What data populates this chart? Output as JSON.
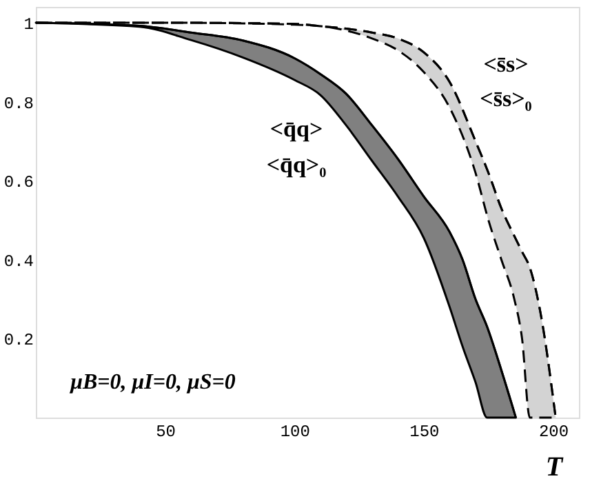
{
  "chart_data": {
    "type": "line",
    "xlabel": "T",
    "xlim": [
      0,
      210
    ],
    "ylim": [
      0,
      1.04
    ],
    "xticks": [
      50,
      100,
      150,
      200
    ],
    "yticks": [
      0.2,
      0.4,
      0.6,
      0.8,
      {
        "value": 1,
        "label": "1"
      }
    ],
    "grid": false,
    "series": [
      {
        "color": "#000000",
        "line_style": "solid",
        "x": [
          0,
          40,
          60,
          80,
          100,
          110,
          120,
          130,
          140,
          150,
          160,
          165,
          170,
          174.5,
          180,
          185.6
        ],
        "values": [
          1,
          0.992,
          0.975,
          0.955,
          0.91,
          0.87,
          0.82,
          0.74,
          0.655,
          0.56,
          0.47,
          0.4,
          0.3,
          0.23,
          0.12,
          0
        ],
        "upper": [
          1,
          0.992,
          0.975,
          0.955,
          0.91,
          0.87,
          0.82,
          0.74,
          0.655,
          0.56,
          0.47,
          0.4,
          0.3,
          0.23,
          0.12,
          0
        ],
        "lower": [
          1,
          0.99,
          0.956,
          0.912,
          0.855,
          0.817,
          0.74,
          0.65,
          0.56,
          0.455,
          0.28,
          0.18,
          0.09,
          0,
          0,
          0
        ]
      },
      {
        "color": "#000000",
        "line_style": "dashed",
        "x": [
          0,
          50,
          100,
          112,
          120,
          130,
          140,
          150,
          160,
          170,
          175,
          180,
          185,
          188,
          191,
          195,
          201
        ],
        "values": [
          1,
          1,
          0.997,
          0.99,
          0.985,
          0.975,
          0.96,
          0.925,
          0.85,
          0.7,
          0.62,
          0.53,
          0.46,
          0.42,
          0.38,
          0.27,
          0
        ],
        "upper": [
          1,
          1,
          0.997,
          0.99,
          0.985,
          0.975,
          0.96,
          0.925,
          0.85,
          0.7,
          0.62,
          0.53,
          0.46,
          0.42,
          0.38,
          0.27,
          0
        ],
        "lower": [
          1,
          1,
          0.995,
          0.99,
          0.98,
          0.96,
          0.93,
          0.875,
          0.785,
          0.62,
          0.5,
          0.4,
          0.3,
          0.2,
          0,
          0,
          0
        ]
      }
    ],
    "annotations": [
      "<q̄q>",
      "<q̄q>₀",
      "<s̄s>",
      "<s̄s>₀",
      "μB=0, μI=0, μS=0"
    ]
  }
}
